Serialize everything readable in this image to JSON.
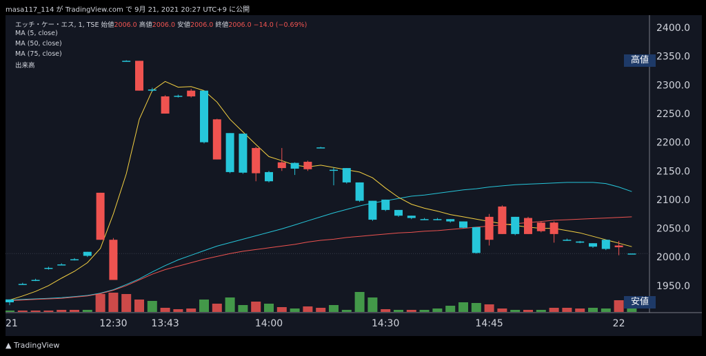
{
  "header": {
    "text": "masa117_114 が TradingView.com で 9月 21, 2021 20:27 UTC+9 に公開"
  },
  "legend": {
    "symbol_line_prefix": "エッチ・ケー・エス, 1, TSE 始値",
    "open": "2006.0",
    "high_label": "高値",
    "high": "2006.0",
    "low_label": "安値",
    "low": "2006.0",
    "close_label": "終値",
    "close": "2006.0",
    "change": "−14.0 (−0.69%)",
    "ma5": "MA (5, close)",
    "ma50": "MA (50, close)",
    "ma75": "MA (75, close)",
    "volume": "出来高"
  },
  "tags": {
    "high": "高値",
    "low": "安値"
  },
  "footer": {
    "logo": "TradingView"
  },
  "colors": {
    "background": "#131722",
    "up": "#26c6da",
    "down": "#ef5350",
    "ma5": "#f5d142",
    "ma50": "#ef5350",
    "ma75": "#26c6da",
    "volume_up": "#4caf50",
    "volume_down": "#ef5350"
  },
  "chart_data": {
    "type": "candlestick",
    "y_ticks": [
      "2400.0",
      "2350.0",
      "2300.0",
      "2250.0",
      "2200.0",
      "2150.0",
      "2100.0",
      "2050.0",
      "2000.0",
      "1950.0"
    ],
    "ylim": [
      1900,
      2425
    ],
    "x_tick_labels": [
      "21",
      "12:30",
      "13:43",
      "14:00",
      "14:30",
      "14:45",
      "22"
    ],
    "candles": [
      {
        "o": 1921,
        "h": 1926,
        "l": 1916,
        "c": 1926
      },
      {
        "o": 1953,
        "h": 1955,
        "l": 1952,
        "c": 1953
      },
      {
        "o": 1960,
        "h": 1962,
        "l": 1958,
        "c": 1960
      },
      {
        "o": 1980,
        "h": 1983,
        "l": 1978,
        "c": 1981
      },
      {
        "o": 1987,
        "h": 1989,
        "l": 1986,
        "c": 1987
      },
      {
        "o": 1996,
        "h": 1998,
        "l": 1994,
        "c": 1996
      },
      {
        "o": 2002,
        "h": 2009,
        "l": 2000,
        "c": 2009
      },
      {
        "o": 2112,
        "h": 2112,
        "l": 2030,
        "c": 2030
      },
      {
        "o": 2030,
        "h": 2033,
        "l": 1960,
        "c": 1960
      },
      {
        "o": 2342,
        "h": 2343,
        "l": 2341,
        "c": 2342
      },
      {
        "o": 2342,
        "h": 2342,
        "l": 2290,
        "c": 2290
      },
      {
        "o": 2290,
        "h": 2295,
        "l": 2288,
        "c": 2292
      },
      {
        "o": 2280,
        "h": 2282,
        "l": 2250,
        "c": 2250
      },
      {
        "o": 2280,
        "h": 2283,
        "l": 2278,
        "c": 2281
      },
      {
        "o": 2290,
        "h": 2293,
        "l": 2278,
        "c": 2280
      },
      {
        "o": 2200,
        "h": 2290,
        "l": 2198,
        "c": 2290
      },
      {
        "o": 2240,
        "h": 2241,
        "l": 2170,
        "c": 2170
      },
      {
        "o": 2148,
        "h": 2216,
        "l": 2146,
        "c": 2216
      },
      {
        "o": 2147,
        "h": 2215,
        "l": 2145,
        "c": 2215
      },
      {
        "o": 2190,
        "h": 2192,
        "l": 2132,
        "c": 2146
      },
      {
        "o": 2132,
        "h": 2150,
        "l": 2130,
        "c": 2148
      },
      {
        "o": 2165,
        "h": 2190,
        "l": 2150,
        "c": 2155
      },
      {
        "o": 2154,
        "h": 2165,
        "l": 2143,
        "c": 2164
      },
      {
        "o": 2166,
        "h": 2168,
        "l": 2150,
        "c": 2153
      },
      {
        "o": 2191,
        "h": 2192,
        "l": 2190,
        "c": 2191
      },
      {
        "o": 2152,
        "h": 2156,
        "l": 2125,
        "c": 2152
      },
      {
        "o": 2130,
        "h": 2155,
        "l": 2128,
        "c": 2155
      },
      {
        "o": 2098,
        "h": 2130,
        "l": 2096,
        "c": 2130
      },
      {
        "o": 2065,
        "h": 2098,
        "l": 2063,
        "c": 2098
      },
      {
        "o": 2082,
        "h": 2100,
        "l": 2080,
        "c": 2100
      },
      {
        "o": 2072,
        "h": 2082,
        "l": 2070,
        "c": 2082
      },
      {
        "o": 2068,
        "h": 2072,
        "l": 2066,
        "c": 2072
      },
      {
        "o": 2066,
        "h": 2068,
        "l": 2065,
        "c": 2066
      },
      {
        "o": 2066,
        "h": 2068,
        "l": 2064,
        "c": 2066
      },
      {
        "o": 2062,
        "h": 2066,
        "l": 2060,
        "c": 2066
      },
      {
        "o": 2051,
        "h": 2062,
        "l": 2050,
        "c": 2062
      },
      {
        "o": 2007,
        "h": 2052,
        "l": 2006,
        "c": 2052
      },
      {
        "o": 2070,
        "h": 2075,
        "l": 2020,
        "c": 2030
      },
      {
        "o": 2088,
        "h": 2090,
        "l": 2040,
        "c": 2040
      },
      {
        "o": 2040,
        "h": 2070,
        "l": 2038,
        "c": 2070
      },
      {
        "o": 2068,
        "h": 2070,
        "l": 2040,
        "c": 2040
      },
      {
        "o": 2060,
        "h": 2062,
        "l": 2043,
        "c": 2045
      },
      {
        "o": 2060,
        "h": 2062,
        "l": 2025,
        "c": 2040
      },
      {
        "o": 2030,
        "h": 2032,
        "l": 2028,
        "c": 2030
      },
      {
        "o": 2025,
        "h": 2028,
        "l": 2024,
        "c": 2027
      },
      {
        "o": 2018,
        "h": 2024,
        "l": 2016,
        "c": 2024
      },
      {
        "o": 2014,
        "h": 2030,
        "l": 2012,
        "c": 2030
      },
      {
        "o": 2020,
        "h": 2028,
        "l": 2003,
        "c": 2017
      },
      {
        "o": 2006,
        "h": 2006,
        "l": 2006,
        "c": 2006
      }
    ],
    "volume": [
      {
        "v": 2,
        "up": true
      },
      {
        "v": 2,
        "up": false
      },
      {
        "v": 2,
        "up": false
      },
      {
        "v": 2,
        "up": false
      },
      {
        "v": 3,
        "up": false
      },
      {
        "v": 3,
        "up": false
      },
      {
        "v": 3,
        "up": true
      },
      {
        "v": 26,
        "up": false
      },
      {
        "v": 28,
        "up": false
      },
      {
        "v": 26,
        "up": false
      },
      {
        "v": 18,
        "up": false
      },
      {
        "v": 16,
        "up": true
      },
      {
        "v": 6,
        "up": false
      },
      {
        "v": 4,
        "up": false
      },
      {
        "v": 5,
        "up": false
      },
      {
        "v": 18,
        "up": true
      },
      {
        "v": 12,
        "up": false
      },
      {
        "v": 21,
        "up": true
      },
      {
        "v": 10,
        "up": true
      },
      {
        "v": 15,
        "up": false
      },
      {
        "v": 12,
        "up": true
      },
      {
        "v": 7,
        "up": false
      },
      {
        "v": 5,
        "up": true
      },
      {
        "v": 8,
        "up": false
      },
      {
        "v": 6,
        "up": false
      },
      {
        "v": 10,
        "up": true
      },
      {
        "v": 3,
        "up": true
      },
      {
        "v": 29,
        "up": true
      },
      {
        "v": 21,
        "up": true
      },
      {
        "v": 4,
        "up": false
      },
      {
        "v": 3,
        "up": true
      },
      {
        "v": 3,
        "up": false
      },
      {
        "v": 3,
        "up": true
      },
      {
        "v": 5,
        "up": true
      },
      {
        "v": 9,
        "up": true
      },
      {
        "v": 14,
        "up": true
      },
      {
        "v": 13,
        "up": true
      },
      {
        "v": 11,
        "up": false
      },
      {
        "v": 5,
        "up": false
      },
      {
        "v": 3,
        "up": true
      },
      {
        "v": 3,
        "up": false
      },
      {
        "v": 3,
        "up": true
      },
      {
        "v": 6,
        "up": false
      },
      {
        "v": 6,
        "up": false
      },
      {
        "v": 5,
        "up": false
      },
      {
        "v": 6,
        "up": true
      },
      {
        "v": 5,
        "up": true
      },
      {
        "v": 17,
        "up": false
      },
      {
        "v": 13,
        "up": true
      }
    ],
    "ma5": [
      1925,
      1932,
      1940,
      1950,
      1963,
      1975,
      1990,
      2015,
      2075,
      2145,
      2240,
      2290,
      2306,
      2296,
      2297,
      2290,
      2270,
      2240,
      2218,
      2196,
      2175,
      2168,
      2160,
      2157,
      2160,
      2156,
      2152,
      2148,
      2138,
      2120,
      2104,
      2092,
      2085,
      2080,
      2074,
      2070,
      2066,
      2062,
      2058,
      2055,
      2052,
      2050,
      2050,
      2046,
      2042,
      2036,
      2030,
      2024,
      2018
    ],
    "ma50": [
      1924,
      1925,
      1926,
      1927,
      1928,
      1930,
      1932,
      1936,
      1942,
      1950,
      1960,
      1970,
      1978,
      1984,
      1990,
      1996,
      2001,
      2006,
      2010,
      2013,
      2016,
      2019,
      2022,
      2026,
      2029,
      2031,
      2034,
      2036,
      2038,
      2040,
      2042,
      2043,
      2045,
      2046,
      2048,
      2050,
      2052,
      2054,
      2056,
      2058,
      2060,
      2062,
      2064,
      2065,
      2066,
      2067,
      2068,
      2069,
      2070
    ],
    "ma75": [
      1925,
      1926,
      1927,
      1928,
      1929,
      1931,
      1933,
      1937,
      1943,
      1952,
      1962,
      1974,
      1985,
      1995,
      2003,
      2011,
      2019,
      2025,
      2031,
      2037,
      2043,
      2049,
      2056,
      2063,
      2070,
      2077,
      2083,
      2089,
      2094,
      2098,
      2102,
      2106,
      2108,
      2111,
      2114,
      2117,
      2119,
      2122,
      2124,
      2126,
      2127,
      2128,
      2129,
      2130,
      2130,
      2130,
      2128,
      2122,
      2114
    ]
  }
}
